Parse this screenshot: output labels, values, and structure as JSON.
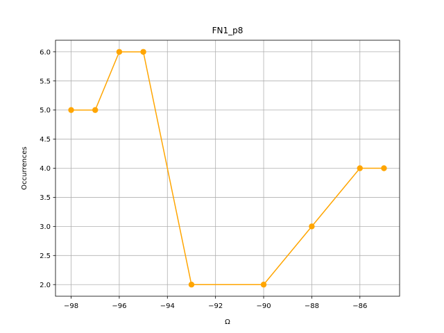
{
  "chart_data": {
    "type": "line",
    "title": "FN1_p8",
    "xlabel": "Ω",
    "ylabel": "Occurrences",
    "x": [
      -98,
      -97,
      -96,
      -95,
      -93,
      -90,
      -88,
      -86,
      -85
    ],
    "series": [
      {
        "values": [
          5,
          5,
          6,
          6,
          2,
          2,
          3,
          4,
          4
        ],
        "color": "#FFA500"
      }
    ],
    "xlim": [
      -98.65,
      -84.35
    ],
    "ylim": [
      1.8,
      6.2
    ],
    "xticks": [
      -98,
      -96,
      -94,
      -92,
      -90,
      -88,
      -86
    ],
    "yticks": [
      2.0,
      2.5,
      3.0,
      3.5,
      4.0,
      4.5,
      5.0,
      5.5,
      6.0
    ],
    "xtick_labels": [
      "−98",
      "−96",
      "−94",
      "−92",
      "−90",
      "−88",
      "−86"
    ],
    "ytick_labels": [
      "2.0",
      "2.5",
      "3.0",
      "3.5",
      "4.0",
      "4.5",
      "5.0",
      "5.5",
      "6.0"
    ],
    "grid": true,
    "legend": false
  }
}
